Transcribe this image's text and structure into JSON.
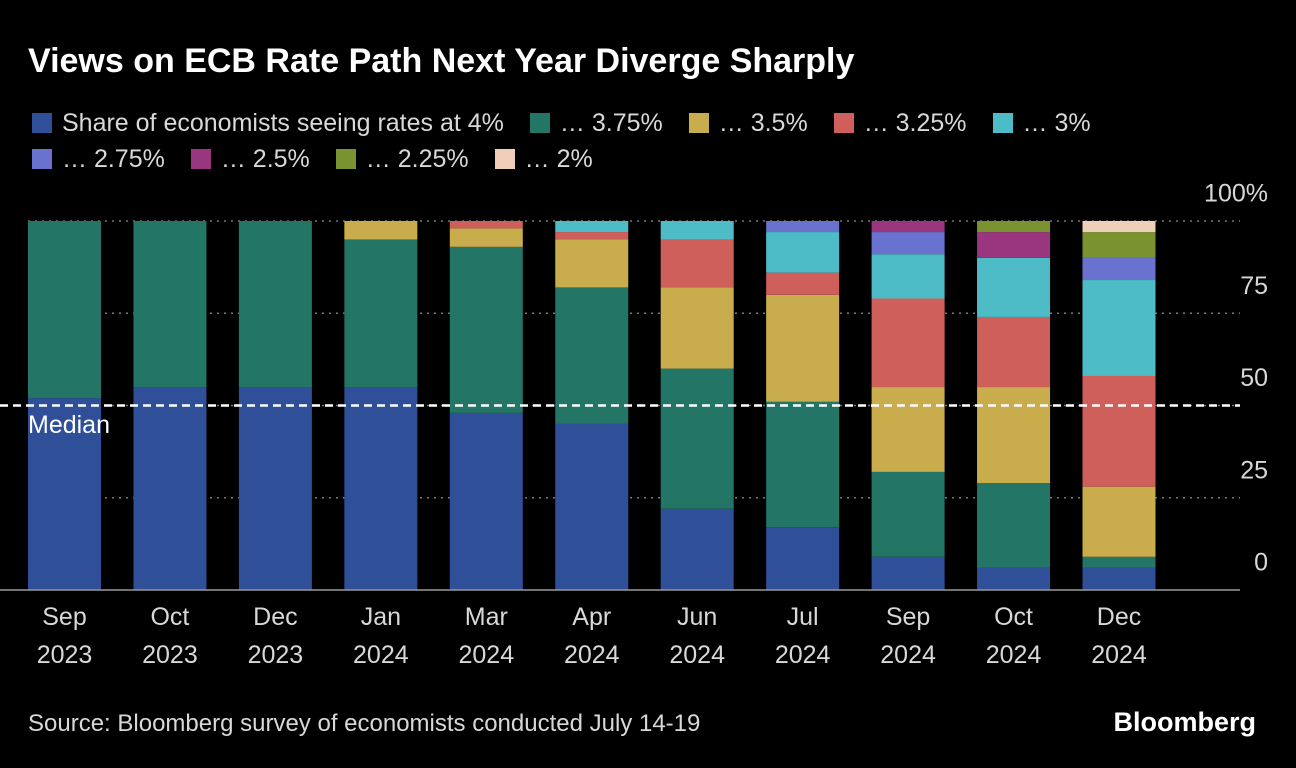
{
  "chart_data": {
    "type": "stacked-bar",
    "title": "Views on ECB Rate Path Next Year Diverge Sharply",
    "categories": [
      "Sep 2023",
      "Oct 2023",
      "Dec 2023",
      "Jan 2024",
      "Mar 2024",
      "Apr 2024",
      "Jun 2024",
      "Jul 2024",
      "Sep 2024",
      "Oct 2024",
      "Dec 2024"
    ],
    "series": [
      {
        "name": "Share of economists seeing rates at 4%",
        "color": "#2f4f98",
        "values": [
          52,
          55,
          55,
          55,
          48,
          45,
          22,
          17,
          9,
          6,
          6
        ]
      },
      {
        "name": "… 3.75%",
        "color": "#237566",
        "values": [
          48,
          45,
          45,
          40,
          45,
          37,
          38,
          34,
          23,
          23,
          3
        ]
      },
      {
        "name": "… 3.5%",
        "color": "#c9ad4d",
        "values": [
          0,
          0,
          0,
          5,
          5,
          13,
          22,
          29,
          23,
          26,
          19
        ]
      },
      {
        "name": "… 3.25%",
        "color": "#cf5f5b",
        "values": [
          0,
          0,
          0,
          0,
          2,
          2,
          13,
          6,
          24,
          19,
          30
        ]
      },
      {
        "name": "… 3%",
        "color": "#4dbcc7",
        "values": [
          0,
          0,
          0,
          0,
          0,
          3,
          5,
          11,
          12,
          16,
          26
        ]
      },
      {
        "name": "… 2.75%",
        "color": "#6a72d0",
        "values": [
          0,
          0,
          0,
          0,
          0,
          0,
          0,
          3,
          6,
          0,
          6
        ]
      },
      {
        "name": "… 2.5%",
        "color": "#9a3580",
        "values": [
          0,
          0,
          0,
          0,
          0,
          0,
          0,
          0,
          3,
          7,
          0
        ]
      },
      {
        "name": "… 2.25%",
        "color": "#7a9330",
        "values": [
          0,
          0,
          0,
          0,
          0,
          0,
          0,
          0,
          0,
          3,
          7
        ]
      },
      {
        "name": "… 2%",
        "color": "#efcfb7",
        "values": [
          0,
          0,
          0,
          0,
          0,
          0,
          0,
          0,
          0,
          0,
          3
        ]
      }
    ],
    "ylim": [
      0,
      100
    ],
    "yticks": [
      0,
      25,
      50,
      75,
      {
        "value": 100,
        "label": "100%"
      }
    ],
    "grid": true,
    "median": {
      "value": 50,
      "label": "Median"
    },
    "source": "Source: Bloomberg survey of economists conducted July 14-19",
    "brand": "Bloomberg"
  }
}
